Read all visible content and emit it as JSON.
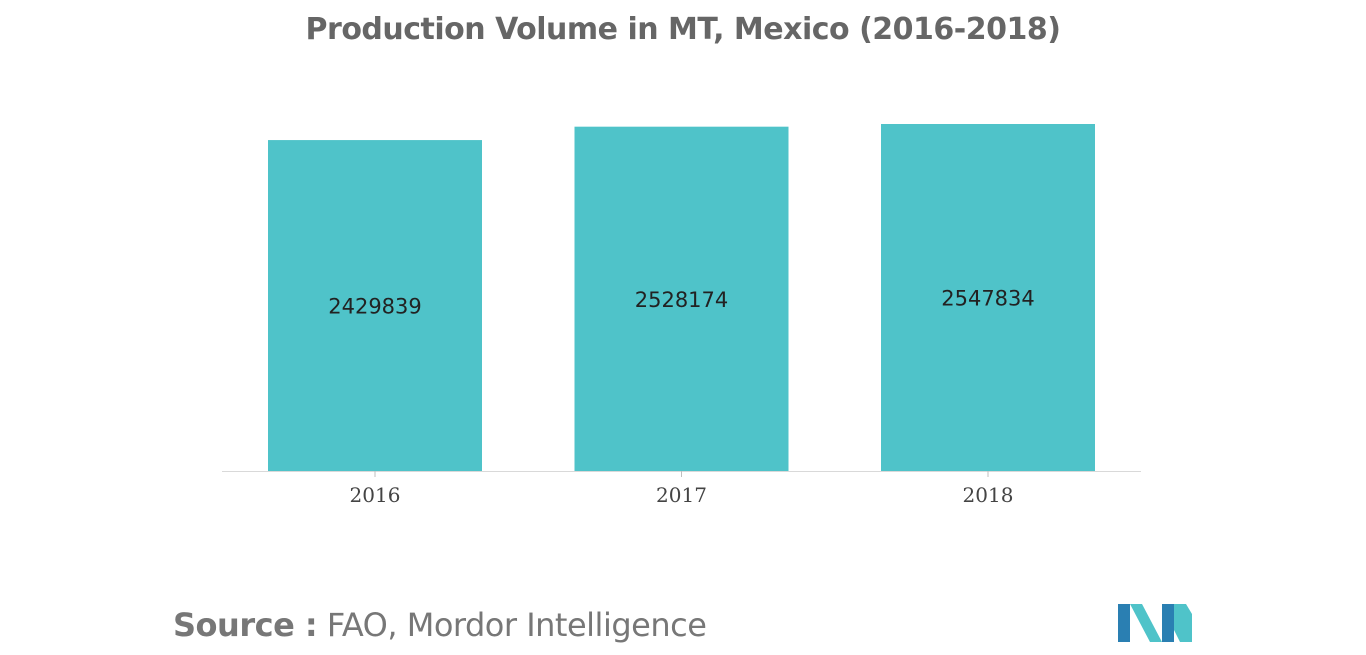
{
  "title": "Production Volume in MT, Mexico (2016-2018)",
  "source": {
    "prefix": "Source :",
    "text": " FAO, Mordor Intelligence"
  },
  "colors": {
    "bar": "#4fc3c9",
    "title": "#666666",
    "logo_dark": "#2a7fb2",
    "logo_light": "#4fc3c9"
  },
  "chart_data": {
    "type": "bar",
    "title": "Production Volume in MT, Mexico (2016-2018)",
    "categories": [
      "2016",
      "2017",
      "2018"
    ],
    "values": [
      2429839,
      2528174,
      2547834
    ],
    "data_labels": [
      "2429839",
      "2528174",
      "2547834"
    ],
    "xlabel": "",
    "ylabel": "",
    "ylim": [
      0,
      2547834
    ],
    "grid": false,
    "legend": "none",
    "y_axis_visible": false
  }
}
